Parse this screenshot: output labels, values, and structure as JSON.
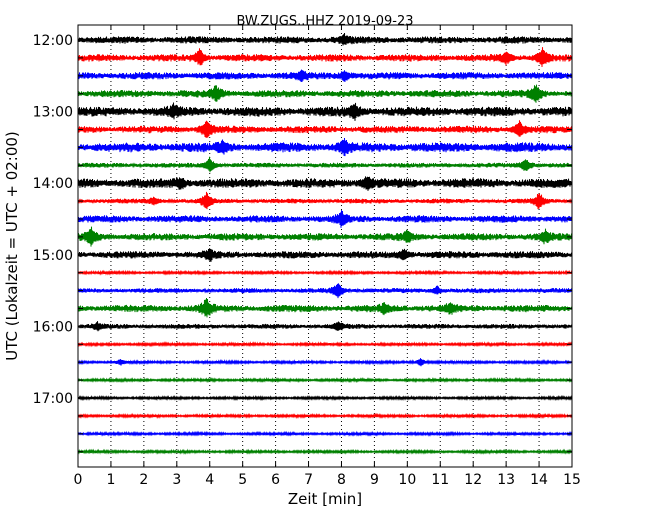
{
  "chart_data": {
    "type": "line",
    "title": "BW.ZUGS..HHZ 2019-09-23",
    "xlabel": "Zeit  [min]",
    "ylabel": "UTC (Lokalzeit = UTC + 02:00)",
    "xlim": [
      0,
      15
    ],
    "x_ticks": [
      "0",
      "1",
      "2",
      "3",
      "4",
      "5",
      "6",
      "7",
      "8",
      "9",
      "10",
      "11",
      "12",
      "13",
      "14",
      "15"
    ],
    "y_tick_labels": [
      "12:00",
      "13:00",
      "14:00",
      "15:00",
      "16:00",
      "17:00"
    ],
    "grid": "vertical dotted",
    "colors": [
      "#000000",
      "#ff0000",
      "#0000ff",
      "#008000"
    ],
    "traces": [
      {
        "time": "12:00",
        "color": "#000000",
        "amplitude": 3,
        "events": [
          [
            8.1,
            4
          ]
        ]
      },
      {
        "time": "12:15",
        "color": "#ff0000",
        "amplitude": 3,
        "events": [
          [
            3.7,
            8
          ],
          [
            14.1,
            10
          ],
          [
            13.0,
            5
          ]
        ]
      },
      {
        "time": "12:30",
        "color": "#0000ff",
        "amplitude": 3,
        "events": [
          [
            8.1,
            5
          ],
          [
            6.8,
            4
          ]
        ]
      },
      {
        "time": "12:45",
        "color": "#008000",
        "amplitude": 3,
        "events": [
          [
            4.2,
            8
          ],
          [
            13.9,
            9
          ]
        ]
      },
      {
        "time": "13:00",
        "color": "#000000",
        "amplitude": 4,
        "events": [
          [
            8.4,
            7
          ],
          [
            2.9,
            5
          ]
        ]
      },
      {
        "time": "13:15",
        "color": "#ff0000",
        "amplitude": 3,
        "events": [
          [
            3.9,
            10
          ],
          [
            13.4,
            8
          ]
        ]
      },
      {
        "time": "13:30",
        "color": "#0000ff",
        "amplitude": 4,
        "events": [
          [
            8.1,
            7
          ],
          [
            4.4,
            6
          ]
        ]
      },
      {
        "time": "13:45",
        "color": "#008000",
        "amplitude": 2,
        "events": [
          [
            4.0,
            8
          ],
          [
            13.6,
            7
          ]
        ]
      },
      {
        "time": "14:00",
        "color": "#000000",
        "amplitude": 4,
        "events": [
          [
            8.8,
            6
          ],
          [
            3.1,
            5
          ]
        ]
      },
      {
        "time": "14:15",
        "color": "#ff0000",
        "amplitude": 2,
        "events": [
          [
            3.9,
            9
          ],
          [
            14.0,
            8
          ],
          [
            2.3,
            4
          ]
        ]
      },
      {
        "time": "14:30",
        "color": "#0000ff",
        "amplitude": 3,
        "events": [
          [
            8.0,
            7
          ]
        ]
      },
      {
        "time": "14:45",
        "color": "#008000",
        "amplitude": 3,
        "events": [
          [
            0.4,
            9
          ],
          [
            14.2,
            6
          ],
          [
            10.0,
            5
          ]
        ]
      },
      {
        "time": "15:00",
        "color": "#000000",
        "amplitude": 3,
        "events": [
          [
            9.9,
            6
          ],
          [
            4.0,
            5
          ]
        ]
      },
      {
        "time": "15:15",
        "color": "#ff0000",
        "amplitude": 1,
        "events": []
      },
      {
        "time": "15:30",
        "color": "#0000ff",
        "amplitude": 2,
        "events": [
          [
            7.9,
            8
          ],
          [
            10.9,
            4
          ]
        ]
      },
      {
        "time": "15:45",
        "color": "#008000",
        "amplitude": 3,
        "events": [
          [
            3.9,
            10
          ],
          [
            11.3,
            6
          ],
          [
            9.3,
            4
          ]
        ]
      },
      {
        "time": "16:00",
        "color": "#000000",
        "amplitude": 2,
        "events": [
          [
            0.6,
            4
          ],
          [
            7.9,
            4
          ]
        ]
      },
      {
        "time": "16:15",
        "color": "#ff0000",
        "amplitude": 1,
        "events": []
      },
      {
        "time": "16:30",
        "color": "#0000ff",
        "amplitude": 1,
        "events": [
          [
            10.4,
            4
          ],
          [
            1.3,
            3
          ]
        ]
      },
      {
        "time": "16:45",
        "color": "#008000",
        "amplitude": 1,
        "events": []
      },
      {
        "time": "17:00",
        "color": "#000000",
        "amplitude": 1,
        "events": []
      },
      {
        "time": "17:15",
        "color": "#ff0000",
        "amplitude": 1,
        "events": []
      },
      {
        "time": "17:30",
        "color": "#0000ff",
        "amplitude": 1,
        "events": []
      },
      {
        "time": "17:45",
        "color": "#008000",
        "amplitude": 1,
        "events": []
      }
    ]
  }
}
